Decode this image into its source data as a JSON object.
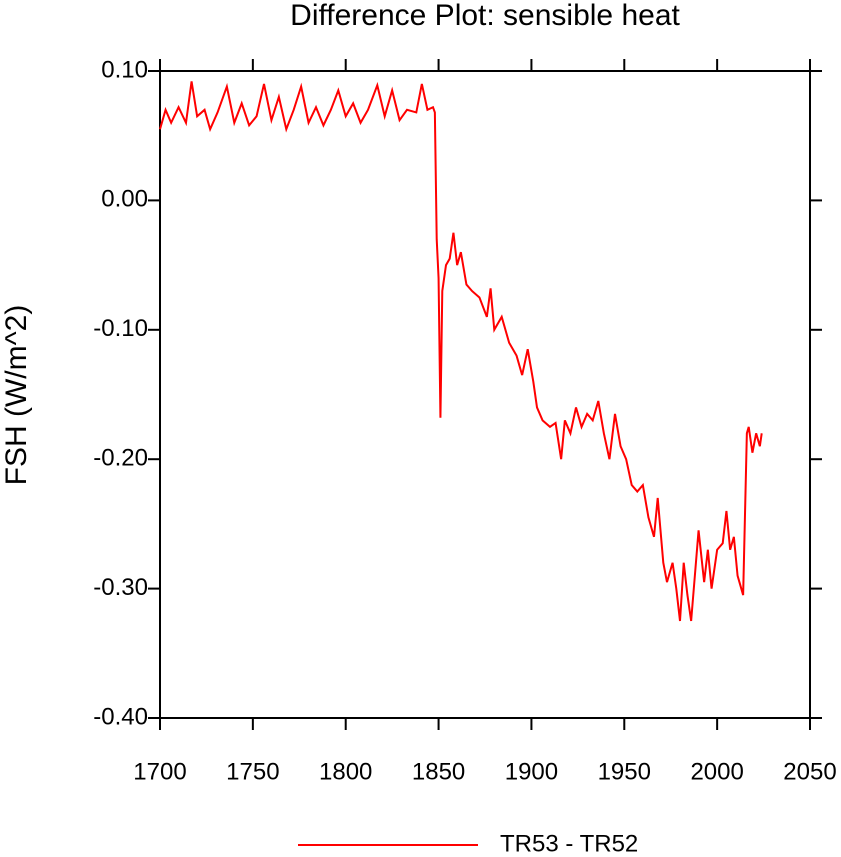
{
  "chart_data": {
    "type": "line",
    "title": "Difference Plot: sensible heat",
    "y_label": "FSH  (W/m^2)",
    "xlim": [
      1700,
      2050
    ],
    "xticks": [
      1700,
      1750,
      1800,
      1850,
      1900,
      1950,
      2000,
      2050
    ],
    "ylim": [
      -0.4,
      0.1
    ],
    "yticks": [
      {
        "value": 0.1,
        "label": "0.10"
      },
      {
        "value": 0,
        "label": "0.00"
      },
      {
        "value": -0.1,
        "label": "-0.10"
      },
      {
        "value": -0.2,
        "label": "-0.20"
      },
      {
        "value": -0.3,
        "label": "-0.30"
      },
      {
        "value": -0.4,
        "label": "-0.40"
      }
    ],
    "x": [
      1700,
      1703,
      1706,
      1710,
      1714,
      1717,
      1720,
      1724,
      1727,
      1731,
      1736,
      1740,
      1744,
      1748,
      1752,
      1756,
      1760,
      1764,
      1768,
      1772,
      1776,
      1780,
      1784,
      1788,
      1792,
      1796,
      1800,
      1804,
      1808,
      1812,
      1817,
      1821,
      1825,
      1829,
      1833,
      1838,
      1841,
      1844,
      1847,
      1848,
      1849,
      1850,
      1851,
      1852,
      1854,
      1856,
      1858,
      1860,
      1862,
      1865,
      1868,
      1872,
      1876,
      1878,
      1880,
      1884,
      1888,
      1892,
      1895,
      1898,
      1901,
      1903,
      1906,
      1910,
      1913,
      1916,
      1918,
      1921,
      1924,
      1927,
      1930,
      1933,
      1936,
      1939,
      1942,
      1945,
      1948,
      1951,
      1954,
      1957,
      1960,
      1963,
      1966,
      1968,
      1971,
      1973,
      1976,
      1978,
      1980,
      1982,
      1984,
      1986,
      1988,
      1990,
      1993,
      1995,
      1997,
      2000,
      2003,
      2005,
      2007,
      2009,
      2011,
      2014,
      2016,
      2017,
      2019,
      2021,
      2023,
      2024
    ],
    "series": [
      {
        "name": "TR53 - TR52",
        "color": "#ff0000",
        "values": [
          0.055,
          0.07,
          0.06,
          0.072,
          0.06,
          0.092,
          0.065,
          0.07,
          0.055,
          0.068,
          0.088,
          0.06,
          0.075,
          0.058,
          0.065,
          0.09,
          0.062,
          0.08,
          0.055,
          0.07,
          0.088,
          0.06,
          0.072,
          0.058,
          0.07,
          0.085,
          0.065,
          0.075,
          0.06,
          0.07,
          0.089,
          0.065,
          0.085,
          0.062,
          0.07,
          0.068,
          0.09,
          0.07,
          0.072,
          0.068,
          -0.03,
          -0.06,
          -0.168,
          -0.07,
          -0.05,
          -0.045,
          -0.025,
          -0.05,
          -0.04,
          -0.065,
          -0.07,
          -0.075,
          -0.09,
          -0.068,
          -0.1,
          -0.09,
          -0.11,
          -0.12,
          -0.135,
          -0.115,
          -0.14,
          -0.16,
          -0.17,
          -0.175,
          -0.172,
          -0.2,
          -0.17,
          -0.18,
          -0.16,
          -0.175,
          -0.165,
          -0.17,
          -0.155,
          -0.18,
          -0.2,
          -0.165,
          -0.19,
          -0.2,
          -0.22,
          -0.225,
          -0.22,
          -0.245,
          -0.26,
          -0.23,
          -0.28,
          -0.295,
          -0.28,
          -0.3,
          -0.325,
          -0.28,
          -0.305,
          -0.325,
          -0.29,
          -0.255,
          -0.295,
          -0.27,
          -0.3,
          -0.27,
          -0.265,
          -0.24,
          -0.27,
          -0.26,
          -0.29,
          -0.305,
          -0.18,
          -0.175,
          -0.195,
          -0.18,
          -0.19,
          -0.18
        ]
      }
    ]
  }
}
